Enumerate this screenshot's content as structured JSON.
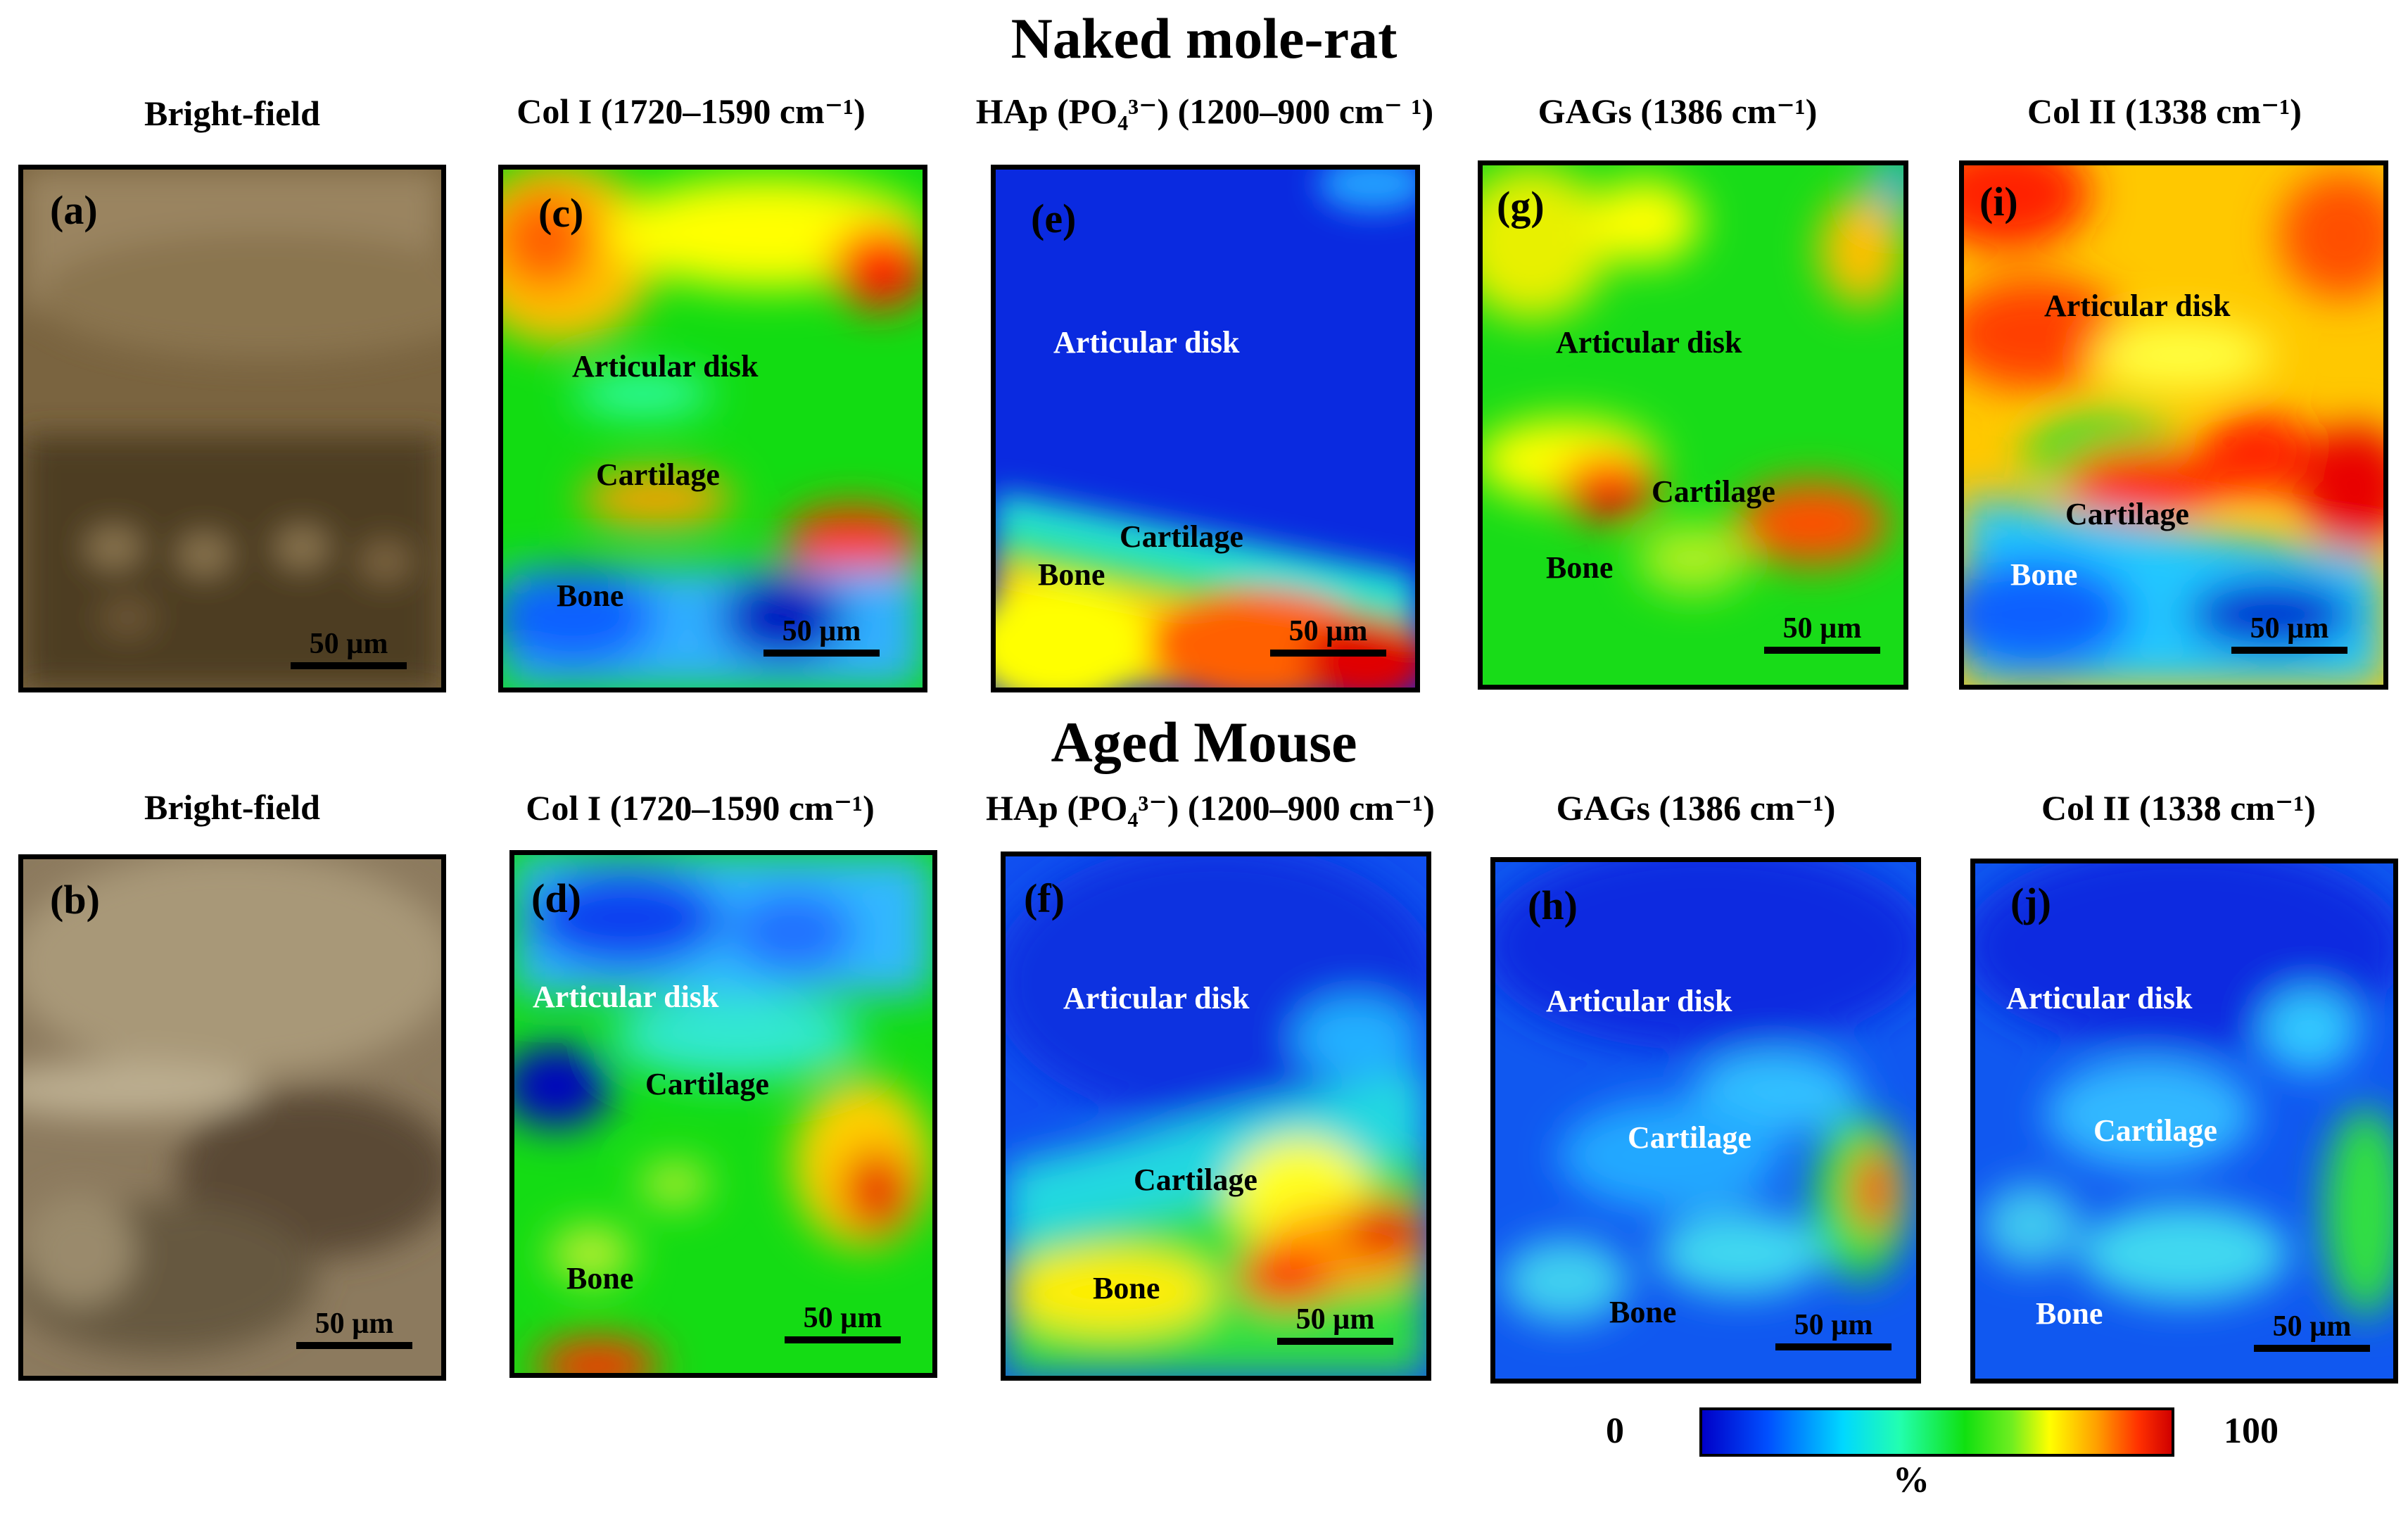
{
  "titles": {
    "top": "Naked mole-rat",
    "bottom": "Aged Mouse"
  },
  "column_titles": {
    "bright": "Bright-field",
    "col1": "Col I (1720–1590 cm⁻¹)",
    "hap_top": "HAp (PO₄³⁻) (1200–900 cm⁻ ¹)",
    "hap_bottom": "HAp (PO₄³⁻) (1200–900 cm⁻¹)",
    "gags": "GAGs (1386 cm⁻¹)",
    "col2": "Col II (1338 cm⁻¹)"
  },
  "panel_labels": {
    "a": "(a)",
    "b": "(b)",
    "c": "(c)",
    "d": "(d)",
    "e": "(e)",
    "f": "(f)",
    "g": "(g)",
    "h": "(h)",
    "i": "(i)",
    "j": "(j)"
  },
  "regions": {
    "disk": "Articular disk",
    "cartilage": "Cartilage",
    "bone": "Bone"
  },
  "scale_bar": "50 µm",
  "colorbar": {
    "min": "0",
    "max": "100",
    "unit": "%",
    "colors": [
      "#0000c8",
      "#0050ff",
      "#00d8ff",
      "#22ffb0",
      "#10e010",
      "#70ee20",
      "#ffff00",
      "#ffa000",
      "#ff3000",
      "#d00000"
    ]
  }
}
